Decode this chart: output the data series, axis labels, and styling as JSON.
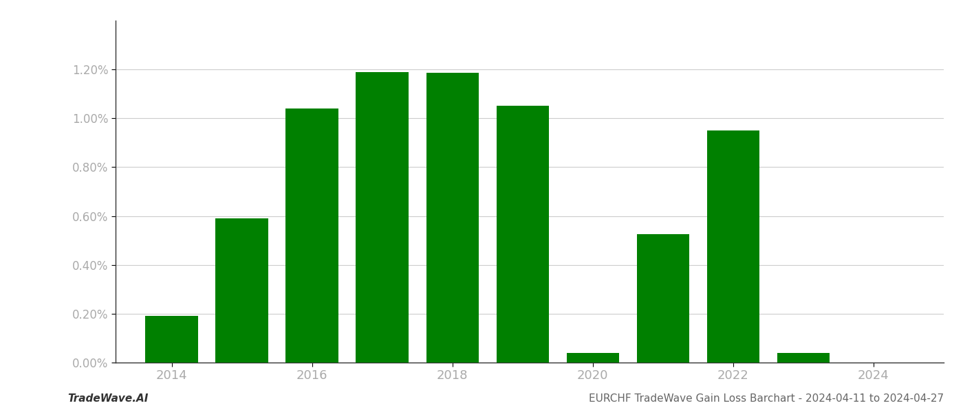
{
  "years": [
    2014,
    2015,
    2016,
    2017,
    2018,
    2019,
    2020,
    2021,
    2022,
    2023,
    2024
  ],
  "values": [
    0.0019,
    0.0059,
    0.0104,
    0.0119,
    0.01185,
    0.0105,
    0.0004,
    0.00525,
    0.0095,
    0.0004,
    0.0
  ],
  "bar_color": "#008000",
  "title": "EURCHF TradeWave Gain Loss Barchart - 2024-04-11 to 2024-04-27",
  "watermark": "TradeWave.AI",
  "ylim": [
    0,
    0.014
  ],
  "yticks": [
    0.0,
    0.002,
    0.004,
    0.006,
    0.008,
    0.01,
    0.012
  ],
  "xtick_labels": [
    "2014",
    "2016",
    "2018",
    "2020",
    "2022",
    "2024"
  ],
  "xtick_positions": [
    2014,
    2016,
    2018,
    2020,
    2022,
    2024
  ],
  "background_color": "#ffffff",
  "grid_color": "#cccccc",
  "bar_width": 0.75,
  "title_fontsize": 11,
  "watermark_fontsize": 11,
  "tick_label_color": "#aaaaaa",
  "title_color": "#666666"
}
